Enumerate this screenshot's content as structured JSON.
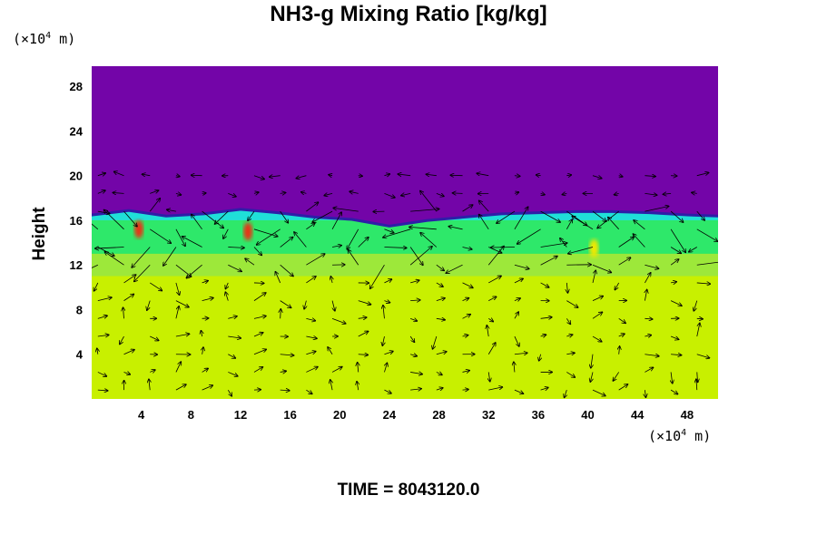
{
  "colors": {
    "upper": "#7305a8",
    "edge": "#2e1ea8",
    "blue": "#3a6df0",
    "cyan": "#1fe0d8",
    "green": "#2ee86a",
    "lime": "#9de83a",
    "lower": "#c8f000",
    "yellow": "#f2e800",
    "red": "#e83018"
  },
  "chart_data": {
    "type": "heatmap",
    "title": "NH3-g Mixing Ratio [kg/kg]",
    "ylabel": "Height",
    "xlabel": "",
    "y_unit": {
      "prefix": "(×10",
      "exp": "4",
      "suffix": " m)"
    },
    "x_unit": {
      "prefix": "(×10",
      "exp": "4",
      "suffix": " m)"
    },
    "xlim": [
      0,
      50.5
    ],
    "ylim": [
      0,
      29.8
    ],
    "xticks": [
      4,
      8,
      12,
      16,
      20,
      24,
      28,
      32,
      36,
      40,
      44,
      48
    ],
    "yticks": [
      4,
      8,
      12,
      16,
      20,
      24,
      28
    ],
    "cloud_top_profile": [
      [
        0,
        16.6
      ],
      [
        3,
        17.0
      ],
      [
        6,
        16.5
      ],
      [
        9,
        16.7
      ],
      [
        12,
        17.1
      ],
      [
        15,
        16.8
      ],
      [
        18,
        16.4
      ],
      [
        21,
        16.2
      ],
      [
        24,
        15.6
      ],
      [
        27,
        16.1
      ],
      [
        30,
        16.4
      ],
      [
        33,
        16.7
      ],
      [
        36,
        16.8
      ],
      [
        39,
        16.9
      ],
      [
        42,
        16.9
      ],
      [
        45,
        16.8
      ],
      [
        48,
        16.6
      ],
      [
        50.5,
        16.5
      ]
    ],
    "layers": [
      {
        "from": 16.0,
        "to": 17.0,
        "color": "cyan"
      },
      {
        "from": 13.0,
        "to": 16.0,
        "color": "green"
      },
      {
        "from": 11.0,
        "to": 13.0,
        "color": "lime"
      }
    ],
    "hotspots": [
      {
        "x": 3.8,
        "y": 15.2,
        "color": "red"
      },
      {
        "x": 12.6,
        "y": 15.0,
        "color": "red"
      },
      {
        "x": 40.5,
        "y": 13.5,
        "color": "yellow"
      }
    ],
    "wind_vectors": {
      "x_spacing": 2.1,
      "y_spacing": 1.6
    }
  },
  "footer": {
    "time_label": "TIME = 8043120.0"
  }
}
